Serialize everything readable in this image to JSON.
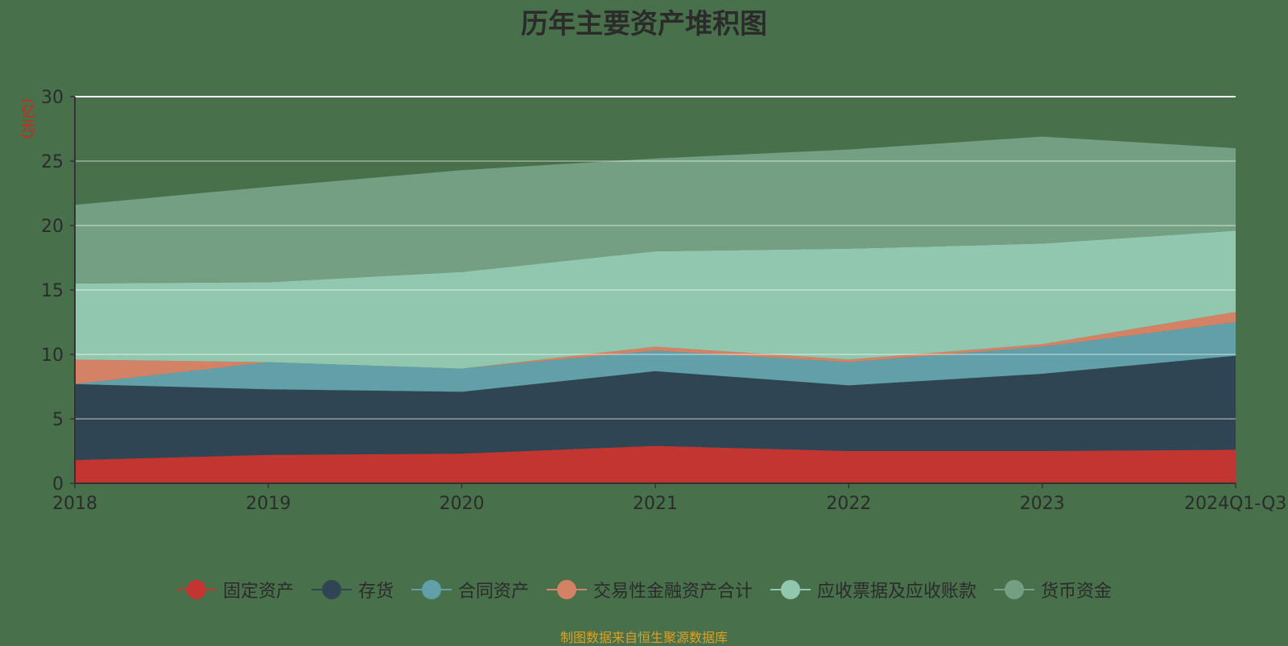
{
  "title": "历年主要资产堆积图",
  "unit_label": "(亿元)",
  "source": "制图数据来自恒生聚源数据库",
  "chart_data": {
    "type": "area",
    "stacked": true,
    "title": "历年主要资产堆积图",
    "ylabel": "(亿元)",
    "ylim": [
      0,
      30
    ],
    "yticks": [
      0,
      5,
      10,
      15,
      20,
      25,
      30
    ],
    "grid": true,
    "legend_position": "bottom",
    "categories": [
      "2018",
      "2019",
      "2020",
      "2021",
      "2022",
      "2023",
      "2024Q1-Q3"
    ],
    "series": [
      {
        "name": "固定资产",
        "color": "#c23531",
        "values": [
          1.8,
          2.2,
          2.3,
          2.9,
          2.5,
          2.5,
          2.6
        ]
      },
      {
        "name": "存货",
        "color": "#2f4554",
        "values": [
          5.9,
          5.1,
          4.8,
          5.8,
          5.1,
          6.0,
          7.3
        ]
      },
      {
        "name": "合同资产",
        "color": "#61a0a8",
        "values": [
          0.0,
          2.1,
          1.8,
          1.6,
          1.8,
          2.1,
          2.6
        ]
      },
      {
        "name": "交易性金融资产合计",
        "color": "#d48265",
        "values": [
          1.9,
          0.0,
          0.0,
          0.3,
          0.2,
          0.2,
          0.8
        ]
      },
      {
        "name": "应收票据及应收账款",
        "color": "#91c7ae",
        "values": [
          5.9,
          6.2,
          7.5,
          7.4,
          8.6,
          7.8,
          6.3
        ]
      },
      {
        "name": "货币资金",
        "color": "#749f83",
        "values": [
          6.1,
          7.4,
          7.9,
          7.2,
          7.7,
          8.3,
          6.4
        ]
      }
    ]
  }
}
